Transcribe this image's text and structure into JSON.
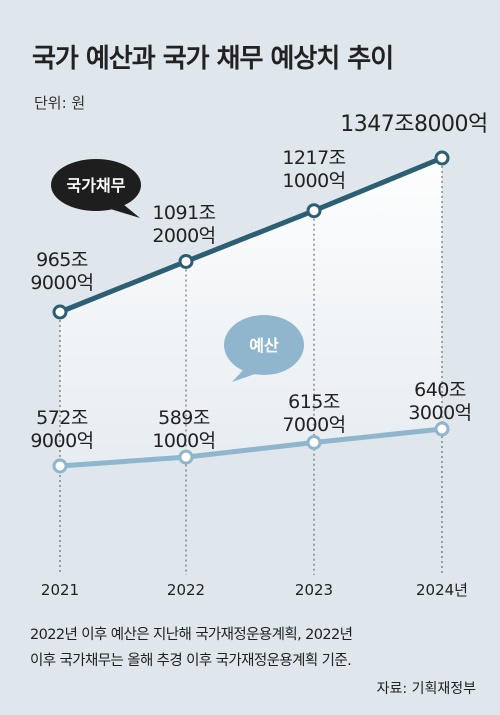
{
  "title": "국가 예산과 국가 채무 예상치 추이",
  "unit": "단위: 원",
  "colors": {
    "background": "#dfe6ec",
    "debt_line": "#2d5f74",
    "budget_line": "#8fb6cd",
    "debt_bubble": "#1e1e1e",
    "budget_bubble": "#8fb6cd"
  },
  "chart_data": {
    "type": "line",
    "title": "국가 예산과 국가 채무 예상치 추이",
    "x": [
      "2021",
      "2022",
      "2023",
      "2024년"
    ],
    "yunit": "원",
    "series": [
      {
        "name": "국가채무",
        "values": [
          965.9,
          1091.2,
          1217.1,
          1347.8
        ],
        "labels": [
          [
            "965조",
            "9000억"
          ],
          [
            "1091조",
            "2000억"
          ],
          [
            "1217조",
            "1000억"
          ],
          [
            "1347조8000억"
          ]
        ]
      },
      {
        "name": "예산",
        "values": [
          572.9,
          589.1,
          615.7,
          640.3
        ],
        "labels": [
          [
            "572조",
            "9000억"
          ],
          [
            "589조",
            "1000억"
          ],
          [
            "615조",
            "7000억"
          ],
          [
            "640조",
            "3000억"
          ]
        ]
      }
    ],
    "grid": false
  },
  "note": [
    "2022년 이후 예산은 지난해 국가재정운용계획, 2022년",
    "이후 국가채무는 올해 추경 이후 국가재정운용계획 기준."
  ],
  "source": "자료: 기획재정부"
}
